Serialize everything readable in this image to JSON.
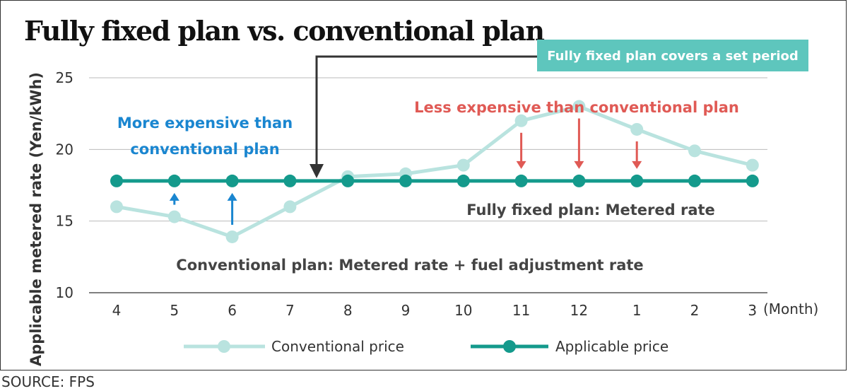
{
  "chart_data": {
    "type": "line",
    "title": "Fully fixed plan vs. conventional plan",
    "ylabel": "Applicable metered rate (Yen/kWh)",
    "xlabel_unit": "(Month)",
    "categories": [
      "4",
      "5",
      "6",
      "7",
      "8",
      "9",
      "10",
      "11",
      "12",
      "1",
      "2",
      "3"
    ],
    "ylim": [
      10,
      25
    ],
    "yticks": [
      10,
      15,
      20,
      25
    ],
    "grid": true,
    "series": [
      {
        "name": "Conventional price",
        "color": "#b9e3df",
        "values": [
          16.0,
          15.3,
          13.9,
          16.0,
          18.1,
          18.3,
          18.9,
          22.0,
          23.0,
          21.4,
          19.9,
          18.9
        ]
      },
      {
        "name": "Applicable price",
        "color": "#149a8c",
        "values": [
          17.8,
          17.8,
          17.8,
          17.8,
          17.8,
          17.8,
          17.8,
          17.8,
          17.8,
          17.8,
          17.8,
          17.8
        ]
      }
    ],
    "annotations": {
      "more_expensive": [
        "More expensive than",
        "conventional plan"
      ],
      "less_expensive": "Less expensive than conventional plan",
      "fixed_label": "Fully fixed plan: Metered rate",
      "conventional_label": "Conventional plan: Metered rate + fuel adjustment rate",
      "callout": "Fully fixed plan covers a set period"
    },
    "up_arrow_months": [
      "5",
      "6"
    ],
    "down_arrow_months": [
      "11",
      "12",
      "1"
    ],
    "legend_position": "bottom"
  },
  "source": "SOURCE: FPS",
  "colors": {
    "title": "#111111",
    "axis_text": "#333333",
    "grid": "#bbbbbb",
    "blue": "#1a86d0",
    "red": "#e05a55",
    "teal_box": "#5ec6bd",
    "callout_arrow": "#333333"
  }
}
